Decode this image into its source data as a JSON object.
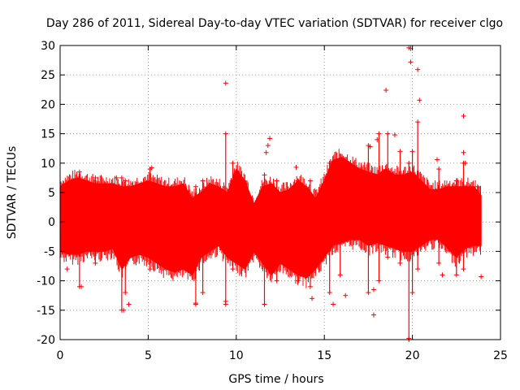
{
  "chart_data": {
    "type": "scatter",
    "title": "Day 286 of 2011, Sidereal Day-to-day VTEC variation (SDTVAR) for receiver clgo",
    "xlabel": "GPS time / hours",
    "ylabel": "SDTVAR / TECUs",
    "xlim": [
      0,
      25
    ],
    "ylim": [
      -20,
      30
    ],
    "xticks": [
      0,
      5,
      10,
      15,
      20,
      25
    ],
    "yticks": [
      -20,
      -15,
      -10,
      -5,
      0,
      5,
      10,
      15,
      20,
      25,
      30
    ],
    "grid": true,
    "marker": "plus",
    "series_color": "#ff0000",
    "envelope": {
      "x": [
        0,
        0.5,
        1,
        1.5,
        2,
        2.5,
        3,
        3.5,
        4,
        4.5,
        5,
        5.5,
        6,
        6.5,
        7,
        7.5,
        8,
        8.5,
        9,
        9.5,
        10,
        10.5,
        11,
        11.5,
        12,
        12.5,
        13,
        13.5,
        14,
        14.5,
        15,
        15.5,
        16,
        16.5,
        17,
        17.5,
        18,
        18.5,
        19,
        19.5,
        20,
        20.5,
        21,
        21.5,
        22,
        22.5,
        23,
        23.5,
        23.9
      ],
      "upper": [
        6,
        7,
        7.5,
        7,
        6.5,
        6.5,
        6.5,
        6,
        6,
        6.5,
        7,
        6.5,
        6,
        6,
        6.5,
        4,
        5,
        6.5,
        6,
        5,
        9,
        7,
        3,
        6,
        6.5,
        5,
        5.5,
        7,
        6,
        4,
        7,
        10.5,
        11,
        10,
        9,
        8.5,
        8,
        9,
        8,
        8,
        8.5,
        7,
        5.5,
        5.5,
        6,
        6,
        6,
        6,
        4.5
      ],
      "lower": [
        -5,
        -5.5,
        -5.5,
        -5,
        -5,
        -5,
        -4.5,
        -8,
        -6,
        -5.5,
        -6,
        -7,
        -8,
        -8.5,
        -8,
        -9,
        -6,
        -5,
        -4,
        -6,
        -7,
        -8,
        -5,
        -7,
        -9,
        -7,
        -8,
        -9,
        -9.5,
        -8,
        -6,
        -4,
        -3.5,
        -3,
        -3,
        -4,
        -3.5,
        -4,
        -4.5,
        -5,
        -5,
        -4,
        -3,
        -3,
        -4.5,
        -6,
        -4.5,
        -4,
        -4
      ]
    },
    "spikes": [
      {
        "x": 1.1,
        "lo": -11,
        "hi": 8.5
      },
      {
        "x": 2.0,
        "lo": -7,
        "hi": 7.5
      },
      {
        "x": 3.5,
        "lo": -15,
        "hi": 7.5
      },
      {
        "x": 3.7,
        "lo": -12,
        "hi": 7
      },
      {
        "x": 5.1,
        "lo": -8,
        "hi": 9
      },
      {
        "x": 7.7,
        "lo": -14,
        "hi": 6
      },
      {
        "x": 8.1,
        "lo": -12,
        "hi": 7
      },
      {
        "x": 9.4,
        "lo": -14,
        "hi": 15
      },
      {
        "x": 9.8,
        "lo": -8,
        "hi": 10
      },
      {
        "x": 11.6,
        "lo": -14,
        "hi": 8
      },
      {
        "x": 12.3,
        "lo": -10,
        "hi": 7
      },
      {
        "x": 13.5,
        "lo": -10,
        "hi": 7
      },
      {
        "x": 14.2,
        "lo": -11,
        "hi": 7
      },
      {
        "x": 15.3,
        "lo": -12,
        "hi": 10
      },
      {
        "x": 15.9,
        "lo": -9,
        "hi": 10
      },
      {
        "x": 17.5,
        "lo": -12,
        "hi": 13
      },
      {
        "x": 18.1,
        "lo": -10,
        "hi": 15
      },
      {
        "x": 18.6,
        "lo": -6,
        "hi": 15
      },
      {
        "x": 19.3,
        "lo": -7,
        "hi": 12
      },
      {
        "x": 19.8,
        "lo": -20,
        "hi": 10
      },
      {
        "x": 20.0,
        "lo": -12,
        "hi": 12
      },
      {
        "x": 20.3,
        "lo": -8,
        "hi": 17
      },
      {
        "x": 21.5,
        "lo": -7,
        "hi": 9
      },
      {
        "x": 22.5,
        "lo": -9,
        "hi": 7
      },
      {
        "x": 22.9,
        "lo": -8,
        "hi": 10
      },
      {
        "x": 23.7,
        "lo": -3,
        "hi": 6
      }
    ],
    "outliers": [
      {
        "x": 0.2,
        "y": 6.5
      },
      {
        "x": 0.4,
        "y": -8
      },
      {
        "x": 1.2,
        "y": -11
      },
      {
        "x": 3.2,
        "y": 7.5
      },
      {
        "x": 3.6,
        "y": -15
      },
      {
        "x": 3.9,
        "y": -14
      },
      {
        "x": 5.2,
        "y": 9.2
      },
      {
        "x": 7.7,
        "y": -13.8
      },
      {
        "x": 9.4,
        "y": 23.6
      },
      {
        "x": 9.4,
        "y": -13.5
      },
      {
        "x": 11.7,
        "y": 11.8
      },
      {
        "x": 11.8,
        "y": 13
      },
      {
        "x": 11.9,
        "y": 14.2
      },
      {
        "x": 11.6,
        "y": -14
      },
      {
        "x": 13.4,
        "y": 9.3
      },
      {
        "x": 14.3,
        "y": -13
      },
      {
        "x": 15.5,
        "y": -14
      },
      {
        "x": 16.2,
        "y": -12.5
      },
      {
        "x": 17.6,
        "y": 12.8
      },
      {
        "x": 17.8,
        "y": -11.5
      },
      {
        "x": 17.8,
        "y": -15.8
      },
      {
        "x": 18.0,
        "y": 14
      },
      {
        "x": 18.5,
        "y": 22.4
      },
      {
        "x": 19.0,
        "y": 14.8
      },
      {
        "x": 19.8,
        "y": 29.6
      },
      {
        "x": 19.9,
        "y": 29.5
      },
      {
        "x": 19.9,
        "y": 27.2
      },
      {
        "x": 20.3,
        "y": 25.9
      },
      {
        "x": 20.4,
        "y": 20.7
      },
      {
        "x": 19.8,
        "y": -19.8
      },
      {
        "x": 21.4,
        "y": 10.6
      },
      {
        "x": 22.9,
        "y": 18
      },
      {
        "x": 22.9,
        "y": 11.8
      },
      {
        "x": 23.0,
        "y": 10
      },
      {
        "x": 23.9,
        "y": -9.3
      },
      {
        "x": 21.7,
        "y": -9
      }
    ]
  }
}
